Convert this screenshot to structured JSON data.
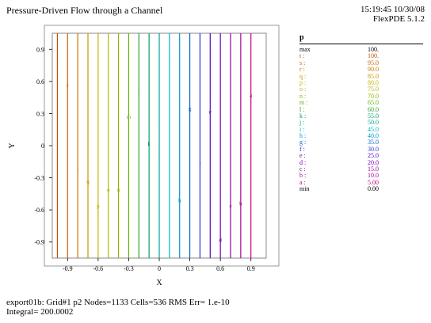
{
  "header": {
    "title": "Pressure-Driven Flow through a Channel",
    "time": "15:19:45 10/30/08",
    "version": "FlexPDE 5.1.2"
  },
  "footer": {
    "line1": "export01b:  Grid#1  p2  Nodes=1133 Cells=536 RMS Err= 1.e-10",
    "line2": "Integral=  200.0002"
  },
  "legend": {
    "title": "p",
    "rows": [
      {
        "key": "max",
        "value": "100."
      },
      {
        "key": "t :",
        "value": "100."
      },
      {
        "key": "s :",
        "value": "95.0"
      },
      {
        "key": "r :",
        "value": "90.0"
      },
      {
        "key": "q :",
        "value": "85.0"
      },
      {
        "key": "p :",
        "value": "80.0"
      },
      {
        "key": "o :",
        "value": "75.0"
      },
      {
        "key": "n :",
        "value": "70.0"
      },
      {
        "key": "m :",
        "value": "65.0"
      },
      {
        "key": "l :",
        "value": "60.0"
      },
      {
        "key": "k :",
        "value": "55.0"
      },
      {
        "key": "j :",
        "value": "50.0"
      },
      {
        "key": "i :",
        "value": "45.0"
      },
      {
        "key": "h :",
        "value": "40.0"
      },
      {
        "key": "g :",
        "value": "35.0"
      },
      {
        "key": "f :",
        "value": "30.0"
      },
      {
        "key": "e :",
        "value": "25.0"
      },
      {
        "key": "d :",
        "value": "20.0"
      },
      {
        "key": "c :",
        "value": "15.0"
      },
      {
        "key": "b :",
        "value": "10.0"
      },
      {
        "key": "a :",
        "value": "5.00"
      },
      {
        "key": "min",
        "value": "0.00"
      }
    ]
  },
  "chart_data": {
    "type": "contour",
    "variable": "p",
    "xlabel": "X",
    "ylabel": "Y",
    "xlim": [
      -1.05,
      1.05
    ],
    "ylim": [
      -1.05,
      1.05
    ],
    "xticks": [
      -0.9,
      -0.6,
      -0.3,
      0,
      0.3,
      0.6,
      0.9
    ],
    "xtick_labels": [
      "-0.9",
      "-0.6",
      "-0.3",
      "0",
      "0.3",
      "0.6",
      "0.9"
    ],
    "yticks": [
      0.9,
      0.6,
      0.3,
      0,
      -0.3,
      -0.6,
      -0.9
    ],
    "ytick_labels": [
      "0.9",
      "0.6",
      "0.3",
      "0",
      "-0.3",
      "-0.6",
      "-0.9"
    ],
    "contours": [
      {
        "label": "t",
        "level": 100,
        "x": -1.0,
        "color": "#c05000",
        "label_y": 0.75
      },
      {
        "label": "s",
        "level": 95,
        "x": -0.9,
        "color": "#c86400",
        "label_y": 0.55
      },
      {
        "label": "r",
        "level": 90,
        "x": -0.8,
        "color": "#c87800",
        "label_y": -0.25
      },
      {
        "label": "q",
        "level": 85,
        "x": -0.7,
        "color": "#c89600",
        "label_y": -0.35
      },
      {
        "label": "p",
        "level": 80,
        "x": -0.6,
        "color": "#c8b400",
        "label_y": -0.58
      },
      {
        "label": "o",
        "level": 75,
        "x": -0.5,
        "color": "#b4b400",
        "label_y": -0.43
      },
      {
        "label": "n",
        "level": 70,
        "x": -0.4,
        "color": "#96b400",
        "label_y": -0.43
      },
      {
        "label": "m",
        "level": 65,
        "x": -0.3,
        "color": "#64b400",
        "label_y": 0.25
      },
      {
        "label": "l",
        "level": 60,
        "x": -0.2,
        "color": "#32a032",
        "label_y": 0.48
      },
      {
        "label": "k",
        "level": 55,
        "x": -0.1,
        "color": "#00a064",
        "label_y": 0.0
      },
      {
        "label": "j",
        "level": 50,
        "x": 0.0,
        "color": "#00a0a0",
        "label_y": -0.07
      },
      {
        "label": "i",
        "level": 45,
        "x": 0.1,
        "color": "#00b4c8",
        "label_y": 0.8
      },
      {
        "label": "h",
        "level": 40,
        "x": 0.2,
        "color": "#0096c8",
        "label_y": -0.53
      },
      {
        "label": "g",
        "level": 35,
        "x": 0.3,
        "color": "#0064c8",
        "label_y": 0.33
      },
      {
        "label": "f",
        "level": 30,
        "x": 0.4,
        "color": "#3232c8",
        "label_y": -0.2
      },
      {
        "label": "e",
        "level": 25,
        "x": 0.5,
        "color": "#5000b4",
        "label_y": 0.3
      },
      {
        "label": "d",
        "level": 20,
        "x": 0.6,
        "color": "#6e00b4",
        "label_y": -0.9
      },
      {
        "label": "c",
        "level": 15,
        "x": 0.7,
        "color": "#8c00a0",
        "label_y": -0.58
      },
      {
        "label": "b",
        "level": 10,
        "x": 0.8,
        "color": "#aa0096",
        "label_y": -0.56
      },
      {
        "label": "a",
        "level": 5,
        "x": 0.9,
        "color": "#c80078",
        "label_y": 0.45
      }
    ],
    "grid": true
  }
}
